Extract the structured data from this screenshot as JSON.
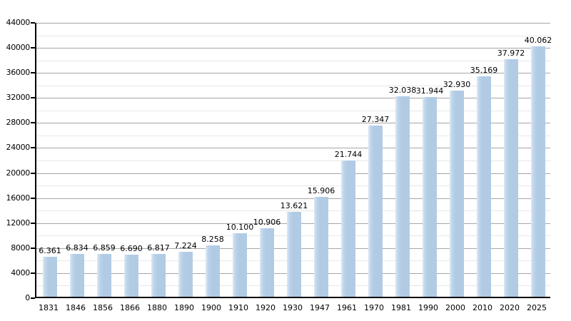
{
  "chart_data": {
    "type": "bar",
    "title": "",
    "xlabel": "",
    "ylabel": "",
    "categories": [
      "1831",
      "1846",
      "1856",
      "1866",
      "1880",
      "1890",
      "1900",
      "1910",
      "1920",
      "1930",
      "1947",
      "1961",
      "1970",
      "1981",
      "1990",
      "2000",
      "2010",
      "2020",
      "2025"
    ],
    "values": [
      6361,
      6834,
      6859,
      6690,
      6817,
      7224,
      8258,
      10100,
      10906,
      13621,
      15906,
      21744,
      27347,
      32038,
      31944,
      32930,
      35169,
      37972,
      40062
    ],
    "value_labels": [
      "6.361",
      "6.834",
      "6.859",
      "6.690",
      "6.817",
      "7.224",
      "8.258",
      "10.100",
      "10.906",
      "13.621",
      "15.906",
      "21.744",
      "27.347",
      "32.038",
      "31.944",
      "32.930",
      "35.169",
      "37.972",
      "40.062"
    ],
    "ylim": [
      0,
      44000
    ],
    "y_major_step": 4000,
    "y_minor_step": 2000,
    "y_tick_labels": [
      "0",
      "4000",
      "8000",
      "12000",
      "16000",
      "20000",
      "24000",
      "28000",
      "32000",
      "36000",
      "40000",
      "44000"
    ],
    "grid": "on",
    "legend": "none",
    "colors": {
      "bar_fill": "#b1cbe4",
      "bar_highlight": "#dde9f4",
      "grid_major": "#a6a6a6",
      "grid_minor": "#e7e7e7",
      "axis": "#000000",
      "text": "#000000"
    }
  }
}
